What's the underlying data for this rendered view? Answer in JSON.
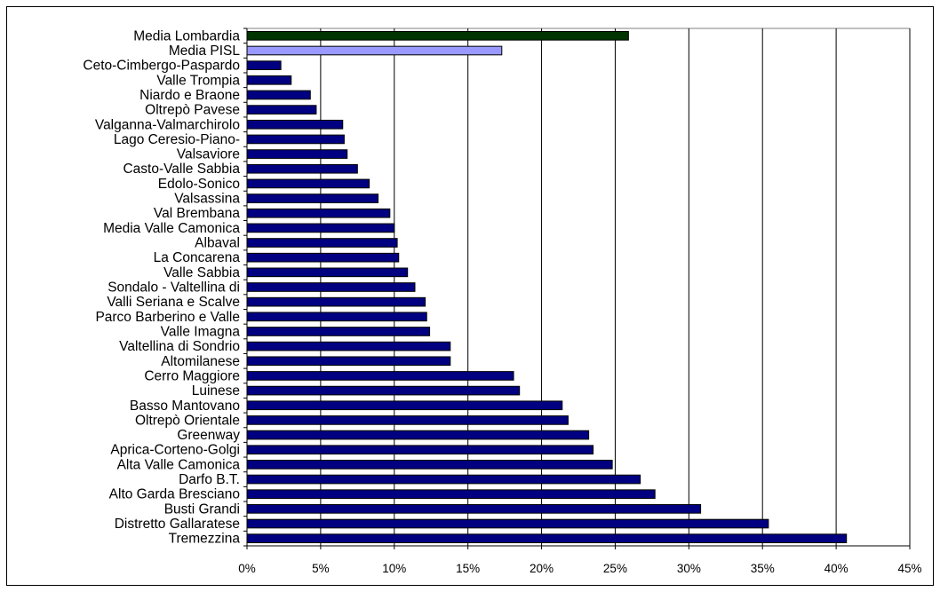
{
  "chart_data": {
    "type": "bar",
    "orientation": "horizontal",
    "title": "",
    "xlabel": "",
    "ylabel": "",
    "xlim": [
      0,
      45
    ],
    "x_ticks": [
      0,
      5,
      10,
      15,
      20,
      25,
      30,
      35,
      40,
      45
    ],
    "x_tick_labels": [
      "0%",
      "5%",
      "10%",
      "15%",
      "20%",
      "25%",
      "30%",
      "35%",
      "40%",
      "45%"
    ],
    "grid": "vertical",
    "legend": "none",
    "default_color": "#000080",
    "categories": [
      "Media Lombardia",
      "Media PISL",
      "Ceto-Cimbergo-Paspardo",
      "Valle Trompia",
      "Niardo e Braone",
      "Oltrepò Pavese",
      "Valganna-Valmarchirolo",
      "Lago Ceresio-Piano-",
      "Valsaviore",
      "Casto-Valle Sabbia",
      "Edolo-Sonico",
      "Valsassina",
      "Val Brembana",
      "Media Valle Camonica",
      "Albaval",
      "La Concarena",
      "Valle Sabbia",
      "Sondalo - Valtellina di",
      "Valli Seriana e Scalve",
      "Parco Barberino e Valle",
      "Valle Imagna",
      "Valtellina di Sondrio",
      "Altomilanese",
      "Cerro Maggiore",
      "Luinese",
      "Basso Mantovano",
      "Oltrepò Orientale",
      "Greenway",
      "Aprica-Corteno-Golgi",
      "Alta Valle Camonica",
      "Darfo B.T.",
      "Alto Garda Bresciano",
      "Busti Grandi",
      "Distretto Gallaratese",
      "Tremezzina"
    ],
    "values": [
      25.9,
      17.3,
      2.3,
      3.0,
      4.3,
      4.7,
      6.5,
      6.6,
      6.8,
      7.5,
      8.3,
      8.9,
      9.7,
      10.0,
      10.2,
      10.3,
      10.9,
      11.4,
      12.1,
      12.2,
      12.4,
      13.8,
      13.8,
      18.1,
      18.5,
      21.4,
      21.8,
      23.2,
      23.5,
      24.8,
      26.7,
      27.7,
      30.8,
      35.4,
      40.7
    ],
    "colors": [
      "#003300",
      "#9999FF",
      "#000080",
      "#000080",
      "#000080",
      "#000080",
      "#000080",
      "#000080",
      "#000080",
      "#000080",
      "#000080",
      "#000080",
      "#000080",
      "#000080",
      "#000080",
      "#000080",
      "#000080",
      "#000080",
      "#000080",
      "#000080",
      "#000080",
      "#000080",
      "#000080",
      "#000080",
      "#000080",
      "#000080",
      "#000080",
      "#000080",
      "#000080",
      "#000080",
      "#000080",
      "#000080",
      "#000080",
      "#000080",
      "#000080"
    ]
  }
}
